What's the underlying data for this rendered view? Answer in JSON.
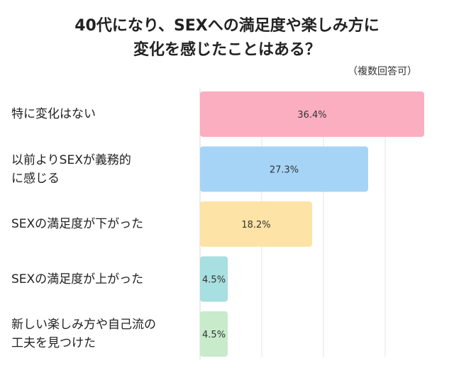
{
  "title_line1": "40代になり、SEXへの満足度や楽しみ方に",
  "title_line2": "変化を感じたことはある？",
  "note": "（複数回答可）",
  "chart_data": {
    "type": "bar",
    "orientation": "horizontal",
    "title": "40代になり、SEXへの満足度や楽しみ方に変化を感じたことはある？",
    "subtitle": "（複数回答可）",
    "categories": [
      "特に変化はない",
      "以前よりSEXが義務的に感じる",
      "SEXの満足度が下がった",
      "SEXの満足度が上がった",
      "新しい楽しみ方や自己流の工夫を見つけた"
    ],
    "category_lines": [
      [
        "特に変化はない"
      ],
      [
        "以前よりSEXが義務的",
        "に感じる"
      ],
      [
        "SEXの満足度が下がった"
      ],
      [
        "SEXの満足度が上がった"
      ],
      [
        "新しい楽しみ方や自己流の",
        "工夫を見つけた"
      ]
    ],
    "values": [
      36.4,
      27.3,
      18.2,
      4.5,
      4.5
    ],
    "value_labels": [
      "36.4%",
      "27.3%",
      "18.2%",
      "4.5%",
      "4.5%"
    ],
    "colors": [
      "#fbaec0",
      "#a6d4f6",
      "#fde3a5",
      "#a8dfe0",
      "#c8ebcb"
    ],
    "xlim": [
      0,
      36.4
    ],
    "grid": true,
    "legend": "none"
  }
}
